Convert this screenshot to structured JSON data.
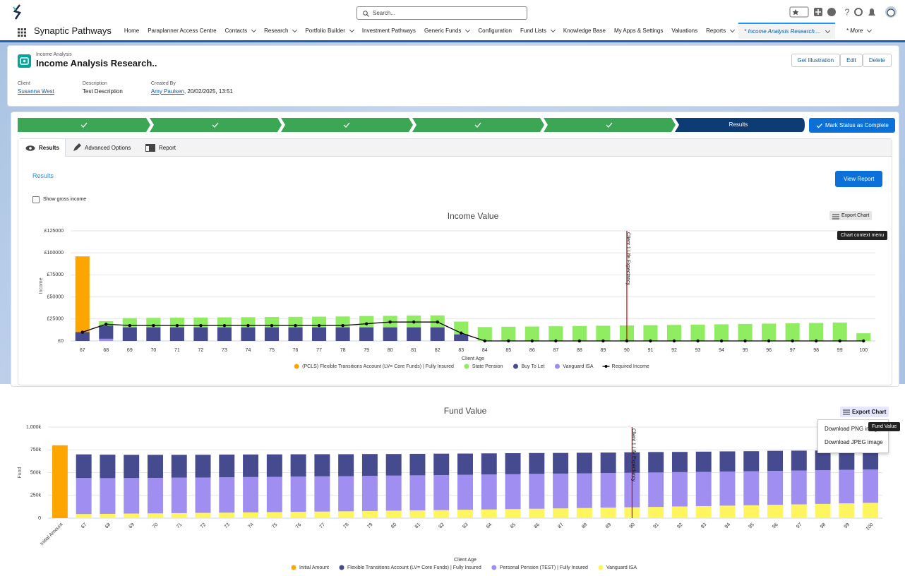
{
  "header": {
    "search_placeholder": "Search..."
  },
  "nav": {
    "app_name": "Synaptic Pathways",
    "items": [
      "Home",
      "Paraplanner Access Centre",
      "Contacts",
      "Research",
      "Portfolio Builder",
      "Investment Pathways",
      "Generic Funds",
      "Configuration",
      "Fund Lists",
      "Knowledge Base",
      "My Apps & Settings",
      "Valuations",
      "Reports"
    ],
    "active_tab": "* Income Analysis Research....",
    "more": "* More"
  },
  "record": {
    "object_label": "Income Analysis",
    "title": "Income Analysis Research..",
    "buttons": [
      "Get Illustration",
      "Edit",
      "Delete"
    ],
    "fields": [
      {
        "label": "Client",
        "value": "Susanna West"
      },
      {
        "label": "Description",
        "value": "Test Description"
      },
      {
        "label": "Created By",
        "value": "Amy Paulsen",
        "suffix": ", 20/02/2025, 13:51"
      }
    ]
  },
  "path": {
    "current": "Results",
    "action": "Mark Status as Complete"
  },
  "tabs": [
    "Results",
    "Advanced Options",
    "Report"
  ],
  "results": {
    "heading": "Results",
    "view_report": "View Report",
    "checkbox": "Show gross income"
  },
  "export": {
    "button": "Export Chart",
    "tooltip": "Chart context menu",
    "menu": [
      "Download PNG image",
      "Download JPEG image"
    ],
    "menu_tooltip": "Fund Value"
  },
  "chart_data": [
    {
      "type": "bar",
      "stacked": true,
      "title": "Income Value",
      "x_label": "Client Age",
      "y_label": "Income",
      "categories": [
        "67",
        "68",
        "69",
        "70",
        "71",
        "72",
        "73",
        "74",
        "75",
        "76",
        "77",
        "78",
        "79",
        "80",
        "81",
        "82",
        "83",
        "84",
        "85",
        "86",
        "87",
        "88",
        "89",
        "90",
        "91",
        "92",
        "93",
        "94",
        "95",
        "96",
        "97",
        "98",
        "99",
        "100"
      ],
      "ylim": [
        0,
        125000
      ],
      "yticks": [
        {
          "value": 0,
          "label": "£0"
        },
        {
          "value": 25000,
          "label": "£25000"
        },
        {
          "value": 50000,
          "label": "£50000"
        },
        {
          "value": 75000,
          "label": "£75000"
        },
        {
          "value": 100000,
          "label": "£100000"
        },
        {
          "value": 125000,
          "label": "£125000"
        }
      ],
      "grid": true,
      "annotation": {
        "category": "90",
        "text": "Client 1 Life Expectancy",
        "color": "#e00000"
      },
      "series": [
        {
          "name": "(PCLS) Flexible Transitions Account (LV= Core Funds) | Fully Insured",
          "color": "#ffa500",
          "values": [
            86000,
            null,
            null,
            null,
            null,
            null,
            null,
            null,
            null,
            null,
            null,
            null,
            null,
            null,
            null,
            null,
            null,
            null,
            null,
            null,
            null,
            null,
            null,
            null,
            null,
            null,
            null,
            null,
            null,
            null,
            null,
            null,
            null,
            null
          ]
        },
        {
          "name": "State Pension",
          "color": "#90ec60",
          "values": [
            null,
            5000,
            10500,
            10700,
            10900,
            11100,
            11300,
            11500,
            11700,
            11900,
            12100,
            12300,
            12800,
            13000,
            13300,
            13500,
            14500,
            15800,
            16100,
            16400,
            16700,
            17000,
            17300,
            17600,
            17900,
            18200,
            18600,
            18900,
            19300,
            19700,
            20000,
            20400,
            20800,
            8700
          ]
        },
        {
          "name": "Buy To Let",
          "color": "#464a8f",
          "values": [
            10000,
            15000,
            15500,
            15500,
            15500,
            15500,
            15500,
            15500,
            15500,
            15500,
            15500,
            15500,
            15500,
            15500,
            15500,
            15500,
            7500,
            null,
            null,
            null,
            null,
            null,
            null,
            null,
            null,
            null,
            null,
            null,
            null,
            null,
            null,
            null,
            null,
            null
          ]
        },
        {
          "name": "Vanguard ISA",
          "color": "#9d8df1",
          "values": [
            null,
            2500,
            null,
            null,
            null,
            null,
            null,
            null,
            null,
            null,
            null,
            null,
            null,
            null,
            null,
            null,
            null,
            null,
            null,
            null,
            null,
            null,
            null,
            null,
            null,
            null,
            null,
            null,
            null,
            null,
            null,
            null,
            null,
            null
          ]
        },
        {
          "name": "Required Income",
          "type": "line",
          "color": "#000000",
          "values": [
            10000,
            19000,
            17500,
            17500,
            17500,
            17500,
            17500,
            17500,
            17500,
            17500,
            17500,
            17500,
            19500,
            21500,
            21500,
            21500,
            9000,
            0,
            0,
            0,
            0,
            0,
            0,
            0,
            0,
            0,
            0,
            0,
            0,
            0,
            0,
            0,
            0,
            0
          ]
        }
      ]
    },
    {
      "type": "bar",
      "stacked": true,
      "title": "Fund Value",
      "x_label": "Client Age",
      "y_label": "Fund",
      "rotate_labels": true,
      "categories": [
        "Initial Amount",
        "67",
        "68",
        "69",
        "70",
        "71",
        "72",
        "73",
        "74",
        "75",
        "76",
        "77",
        "78",
        "79",
        "80",
        "81",
        "82",
        "83",
        "84",
        "85",
        "86",
        "87",
        "88",
        "89",
        "90",
        "91",
        "92",
        "93",
        "94",
        "95",
        "96",
        "97",
        "98",
        "99",
        "100"
      ],
      "ylim": [
        0,
        1000000
      ],
      "yticks": [
        0,
        {
          "value": 250000,
          "label": "250k"
        },
        {
          "value": 500000,
          "label": "500k"
        },
        {
          "value": 750000,
          "label": "750k"
        },
        {
          "value": 1000000,
          "label": "1,000k"
        }
      ],
      "grid": true,
      "annotation": {
        "category": "90",
        "text": "Client 1 Life Expectancy",
        "color": "#e00000"
      },
      "series": [
        {
          "name": "Initial Amount",
          "color": "#ffa500",
          "values": [
            800000,
            null,
            null,
            null,
            null,
            null,
            null,
            null,
            null,
            null,
            null,
            null,
            null,
            null,
            null,
            null,
            null,
            null,
            null,
            null,
            null,
            null,
            null,
            null,
            null,
            null,
            null,
            null,
            null,
            null,
            null,
            null,
            null,
            null,
            null
          ]
        },
        {
          "name": "Flexible Transitions Account (LV= Core Funds) | Fully Insured",
          "color": "#464a8f",
          "values": [
            null,
            260000,
            258000,
            255000,
            253000,
            250000,
            250000,
            250000,
            248000,
            247000,
            245000,
            243000,
            241000,
            240000,
            237000,
            236000,
            235000,
            233000,
            232000,
            231000,
            229000,
            227000,
            226000,
            225000,
            225000,
            225000,
            222000,
            222000,
            221000,
            220000,
            220000,
            218000,
            216000,
            212000,
            200000
          ]
        },
        {
          "name": "Personal Pension (TEST) | Fully Insured",
          "color": "#a08ff1",
          "values": [
            null,
            395000,
            392000,
            390000,
            390000,
            390000,
            388000,
            388000,
            388000,
            387000,
            387000,
            387000,
            386000,
            386000,
            385000,
            385000,
            385000,
            384000,
            384000,
            383000,
            383000,
            382000,
            381000,
            380000,
            379000,
            378000,
            377000,
            376000,
            375000,
            374000,
            373000,
            372000,
            370000,
            368000,
            365000
          ]
        },
        {
          "name": "Vanguard ISA",
          "color": "#fff55e",
          "values": [
            null,
            45000,
            47000,
            50000,
            52000,
            55000,
            58000,
            60000,
            63000,
            66000,
            69000,
            72000,
            75000,
            78000,
            82000,
            85000,
            88000,
            92000,
            95000,
            99000,
            103000,
            107000,
            111000,
            115000,
            119000,
            123000,
            128000,
            132000,
            137000,
            141000,
            146000,
            151000,
            156000,
            162000,
            168000
          ]
        }
      ]
    }
  ]
}
